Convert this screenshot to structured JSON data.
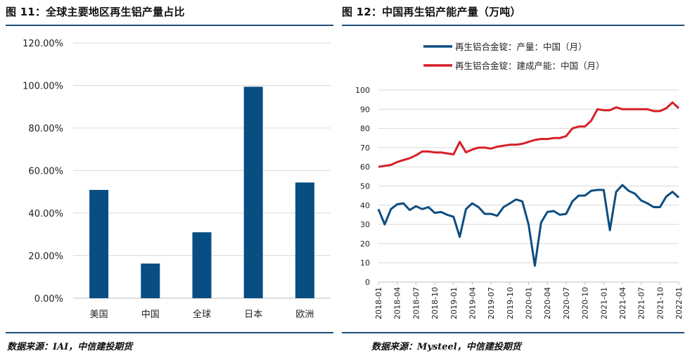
{
  "left_panel": {
    "title": "图 11：全球主要地区再生铝产量占比",
    "source": "数据来源：IAI，中信建投期货"
  },
  "right_panel": {
    "title": "图 12：中国再生铝产能产量（万吨）",
    "source": "数据来源：Mysteel，中信建投期货"
  },
  "colors": {
    "bar": "#084e83",
    "production_line": "#0d4d80",
    "capacity_line": "#d61f26",
    "rule": "#1f4e79",
    "grid": "#d9d9d9"
  },
  "chart_data": [
    {
      "type": "bar",
      "categories": [
        "美国",
        "中国",
        "全球",
        "日本",
        "欧洲"
      ],
      "values": [
        50.9,
        16.3,
        31.0,
        99.4,
        54.4
      ],
      "ylim": [
        0,
        120
      ],
      "yticks": [
        "0.00%",
        "20.00%",
        "40.00%",
        "60.00%",
        "80.00%",
        "100.00%",
        "120.00%"
      ],
      "ytick_values": [
        0,
        20,
        40,
        60,
        80,
        100,
        120
      ],
      "grid": true
    },
    {
      "type": "line",
      "x_tick_labels": [
        "2018-01",
        "2018-04",
        "2018-07",
        "2018-10",
        "2019-01",
        "2019-04",
        "2019-07",
        "2019-10",
        "2020-01",
        "2020-04",
        "2020-07",
        "2020-10",
        "2021-01",
        "2021-04",
        "2021-07",
        "2021-10",
        "2022-01"
      ],
      "ylim": [
        0,
        100
      ],
      "yticks": [
        0,
        10,
        20,
        30,
        40,
        50,
        60,
        70,
        80,
        90,
        100
      ],
      "legend_position": "top",
      "grid": true,
      "series": [
        {
          "name": "再生铝合金锭：产量：中国（月）",
          "color_key": "production_line",
          "values": [
            38,
            30,
            38,
            40.5,
            41,
            37.5,
            39.5,
            38,
            39,
            36,
            36.5,
            35,
            34,
            23.5,
            38,
            41,
            39,
            35.5,
            35.5,
            34.5,
            39,
            41,
            43,
            42,
            30,
            8.5,
            31,
            36.5,
            37,
            35,
            35.5,
            42,
            45,
            45,
            47.5,
            48,
            48,
            27,
            47,
            50.5,
            47.5,
            46,
            42.5,
            41,
            39,
            39,
            44.5,
            47,
            44
          ]
        },
        {
          "name": "再生铝合金锭：建成产能：中国（月）",
          "color_key": "capacity_line",
          "values": [
            60,
            60.5,
            61,
            62.5,
            63.5,
            64.5,
            66,
            68,
            68,
            67.5,
            67.5,
            67,
            66.5,
            73,
            67.5,
            69,
            70,
            70,
            69.5,
            70.5,
            71,
            71.5,
            71.5,
            72,
            73,
            74,
            74.5,
            74.5,
            75,
            75,
            76,
            80,
            81,
            81,
            84,
            90,
            89.5,
            89.5,
            91,
            90,
            90,
            90,
            90,
            90,
            89,
            89,
            90.5,
            93.5,
            90.5
          ]
        }
      ]
    }
  ]
}
